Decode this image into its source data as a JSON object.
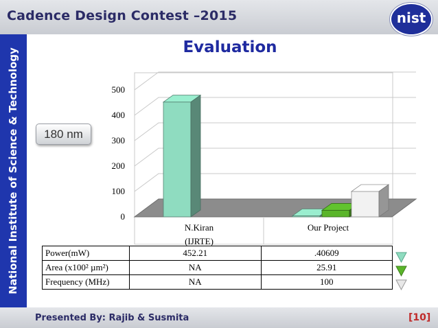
{
  "header": {
    "title": "Cadence Design Contest –2015",
    "logo_text": "nist"
  },
  "sidebar": {
    "text": "National Institute of Science & Technology"
  },
  "slide": {
    "title": "Evaluation",
    "badge": "180 nm"
  },
  "chart_data": {
    "type": "bar",
    "ylim": [
      0,
      500
    ],
    "yticks": [
      "0",
      "100",
      "200",
      "300",
      "400",
      "500"
    ],
    "categories": [
      "N.Kiran\n(IJRTE)",
      "Our Project"
    ],
    "series": [
      {
        "name": "Power(mW)",
        "values": [
          452.21,
          0.40609
        ],
        "color": "#8fdcc0"
      },
      {
        "name": "Area (x100² µm²)",
        "values": [
          null,
          25.91
        ],
        "color": "#5ab52a"
      },
      {
        "name": "Frequency (MHz)",
        "values": [
          null,
          100
        ],
        "color": "#f2f2f2"
      }
    ],
    "table": {
      "rows": [
        {
          "label": "Power(mW)",
          "values": [
            "452.21",
            ".40609"
          ]
        },
        {
          "label": "Area (x100² µm²)",
          "values": [
            "NA",
            "25.91"
          ]
        },
        {
          "label": "Frequency (MHz)",
          "values": [
            "NA",
            "100"
          ]
        }
      ]
    }
  },
  "footer": {
    "presenters": "Presented By: Rajib & Susmita",
    "page": "[10]"
  }
}
